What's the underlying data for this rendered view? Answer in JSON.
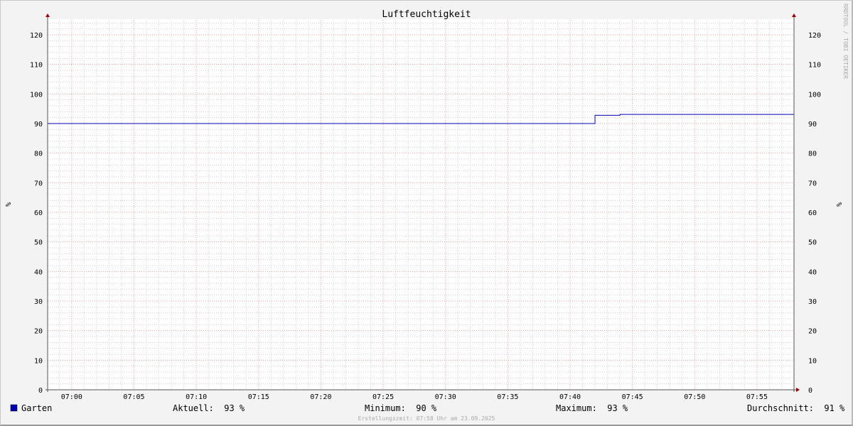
{
  "chart_data": {
    "type": "line",
    "title": "Luftfeuchtigkeit",
    "ylabel": "%",
    "ylim": [
      0,
      125
    ],
    "y_ticks": [
      0,
      10,
      20,
      30,
      40,
      50,
      60,
      70,
      80,
      90,
      100,
      110,
      120
    ],
    "x_range": [
      "06:58",
      "07:58"
    ],
    "x_ticks": [
      "07:00",
      "07:05",
      "07:10",
      "07:15",
      "07:20",
      "07:25",
      "07:30",
      "07:35",
      "07:40",
      "07:45",
      "07:50",
      "07:55"
    ],
    "grid": true,
    "series": [
      {
        "name": "Garten",
        "color": "#0000b4",
        "step": true,
        "points": [
          [
            "06:58",
            90
          ],
          [
            "07:42",
            92.8
          ],
          [
            "07:44",
            93.1
          ],
          [
            "07:58",
            93.1
          ]
        ]
      }
    ]
  },
  "legend": {
    "series_name": "Garten",
    "aktuell": "Aktuell:  93 %",
    "minimum": "Minimum:  90 %",
    "maximum": "Maximum:  93 %",
    "durchschnitt": "Durchschnitt:  91 %"
  },
  "watermark": "RRDTOOL / TOBI OETIKER",
  "footer": "Erstellungszeit: 07:58 Uhr am 23.09.2025"
}
